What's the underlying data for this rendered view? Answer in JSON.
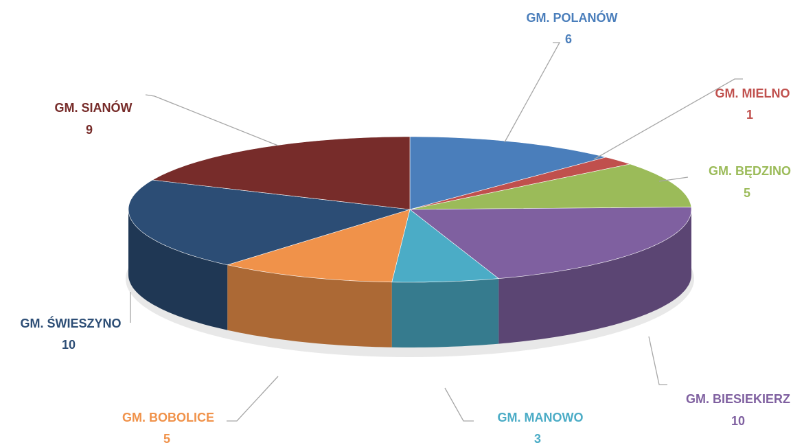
{
  "chart_data": {
    "type": "pie",
    "categories": [
      "GM. POLANÓW",
      "GM. MIELNO",
      "GM. BĘDZINO",
      "GM. BIESIEKIERZ",
      "GM. MANOWO",
      "GM. BOBOLICE",
      "GM. ŚWIESZYNO",
      "GM. SIANÓW"
    ],
    "values": [
      6,
      1,
      5,
      10,
      3,
      5,
      10,
      9
    ],
    "colors": [
      "#4a7ebb",
      "#c0504d",
      "#9bbb59",
      "#7f60a0",
      "#4bacc6",
      "#f0924a",
      "#2c4d75",
      "#772c2a"
    ]
  }
}
